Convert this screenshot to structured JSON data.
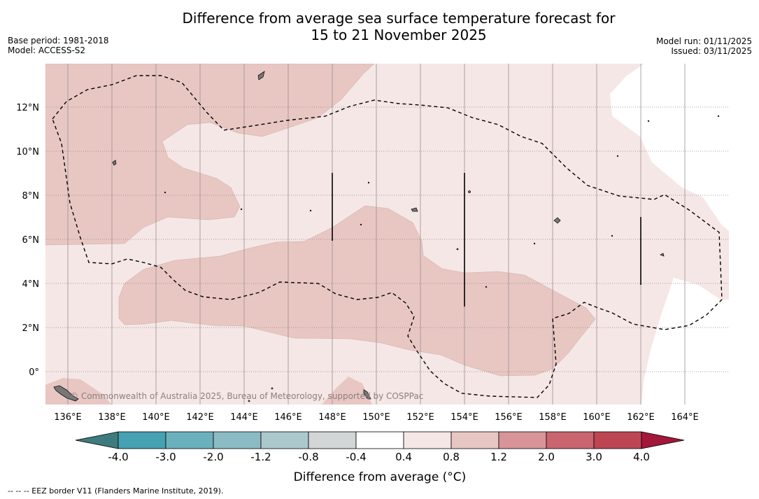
{
  "title": {
    "line1": "Difference from average sea surface temperature forecast for",
    "line2": "15 to 21 November 2025"
  },
  "meta": {
    "base_period": "Base period: 1981-2018",
    "model": "Model: ACCESS-S2",
    "model_run": "Model run: 01/11/2025",
    "issued": "Issued: 03/11/2025"
  },
  "map": {
    "lon_range": [
      135,
      166
    ],
    "lat_range": [
      -1.5,
      14
    ],
    "lon_ticks": [
      "136°E",
      "138°E",
      "140°E",
      "142°E",
      "144°E",
      "146°E",
      "148°E",
      "150°E",
      "152°E",
      "154°E",
      "156°E",
      "158°E",
      "160°E",
      "162°E",
      "164°E"
    ],
    "lat_ticks": [
      "12°N",
      "10°N",
      "8°N",
      "6°N",
      "4°N",
      "2°N",
      "0°"
    ],
    "watermark": "© Commonwealth of Australia 2025, Bureau of Meteorology, supported by COSPPac",
    "dominant_anomaly_range": "0.4 to 0.8",
    "warm_patches_range": "0.8 to 1.2"
  },
  "colorbar": {
    "title": "Difference from average (°C)",
    "ticks": [
      "-4.0",
      "-3.0",
      "-2.0",
      "-1.2",
      "-0.8",
      "-0.4",
      "0.4",
      "0.8",
      "1.2",
      "2.0",
      "3.0",
      "4.0"
    ],
    "colors": [
      "#46a1b2",
      "#6bb1bd",
      "#8bbbc4",
      "#abc9cd",
      "#d3d6d6",
      "#ffffff",
      "#f5e7e6",
      "#e8c7c3",
      "#d89498",
      "#c9656e",
      "#bd4653"
    ],
    "extend_low_color": "#3e7b7e",
    "extend_high_color": "#a3173a"
  },
  "footnote": "--  --  -- EEZ border V11 (Flanders Marine Institute, 2019)."
}
